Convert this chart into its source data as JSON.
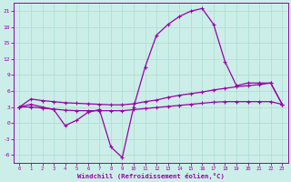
{
  "x": [
    0,
    1,
    2,
    3,
    4,
    5,
    6,
    7,
    8,
    9,
    10,
    11,
    12,
    13,
    14,
    15,
    16,
    17,
    18,
    19,
    20,
    21,
    22,
    23
  ],
  "temp": [
    3.0,
    3.5,
    3.0,
    2.5,
    -0.5,
    0.5,
    2.0,
    2.5,
    -4.5,
    -6.5,
    3.0,
    10.5,
    16.5,
    18.5,
    20.0,
    21.0,
    21.5,
    18.5,
    11.5,
    7.0,
    7.5,
    7.5,
    7.5,
    3.5
  ],
  "mid": [
    3.0,
    4.5,
    4.2,
    4.0,
    3.8,
    3.7,
    3.6,
    3.5,
    3.4,
    3.4,
    3.6,
    4.0,
    4.3,
    4.8,
    5.2,
    5.5,
    5.8,
    6.2,
    6.5,
    6.8,
    7.0,
    7.2,
    7.5,
    3.5
  ],
  "bot": [
    3.0,
    3.0,
    2.8,
    2.6,
    2.4,
    2.3,
    2.3,
    2.3,
    2.3,
    2.3,
    2.5,
    2.7,
    2.9,
    3.1,
    3.3,
    3.5,
    3.7,
    3.9,
    4.0,
    4.0,
    4.0,
    4.0,
    4.0,
    3.5
  ],
  "line_color": "#9900aa",
  "bg_color": "#cceee8",
  "grid_color": "#aaddcc",
  "ylim": [
    -7.5,
    22.5
  ],
  "xlim": [
    -0.5,
    23.5
  ],
  "yticks": [
    -6,
    -3,
    0,
    3,
    6,
    9,
    12,
    15,
    18,
    21
  ],
  "xticks": [
    0,
    1,
    2,
    3,
    4,
    5,
    6,
    7,
    8,
    9,
    10,
    11,
    12,
    13,
    14,
    15,
    16,
    17,
    18,
    19,
    20,
    21,
    22,
    23
  ],
  "xlabel": "Windchill (Refroidissement éolien,°C)"
}
